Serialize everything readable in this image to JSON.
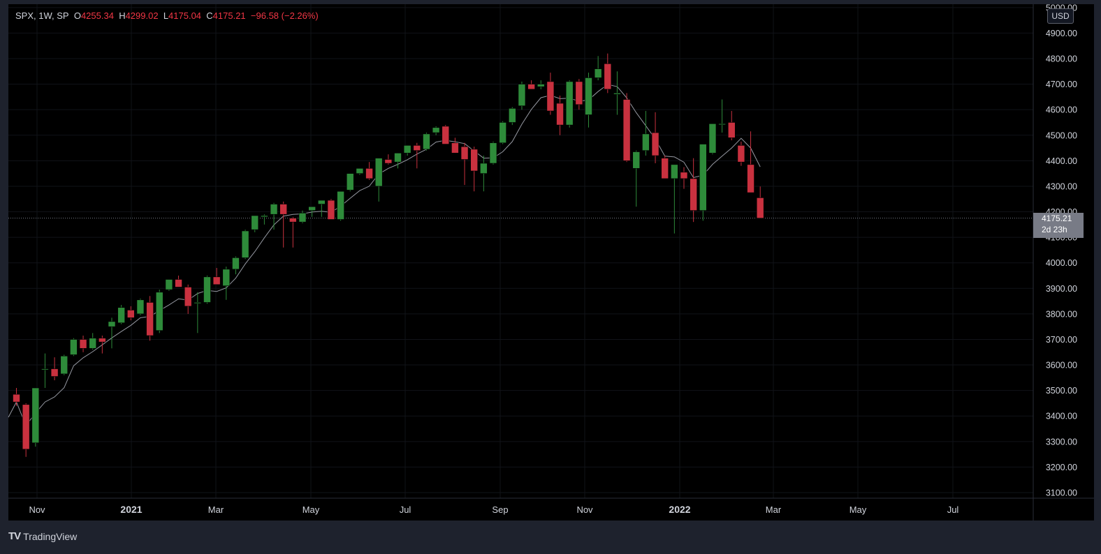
{
  "legend": {
    "symbol": "SPX, 1W, SP",
    "o_label": "O",
    "o": "4255.34",
    "h_label": "H",
    "h": "4299.02",
    "l_label": "L",
    "l": "4175.04",
    "c_label": "C",
    "c": "4175.21",
    "change": "−96.58 (−2.26%)"
  },
  "currency": "USD",
  "last_price": {
    "value": "4175.21",
    "countdown": "2d 23h"
  },
  "brand": "TradingView",
  "colors": {
    "up": "#2e8b3a",
    "down": "#c9313f",
    "bg": "#000000",
    "frame": "#1e222d",
    "ma": "#9598a1",
    "text": "#d1d4dc",
    "red_text": "#f23645"
  },
  "chart_data": {
    "type": "candlestick",
    "title": "SPX, 1W, SP",
    "ylim": [
      3070,
      5000
    ],
    "y_ticks": [
      "5000.00",
      "4900.00",
      "4800.00",
      "4700.00",
      "4600.00",
      "4500.00",
      "4400.00",
      "4300.00",
      "4200.00",
      "4100.00",
      "4000.00",
      "3900.00",
      "3800.00",
      "3700.00",
      "3600.00",
      "3500.00",
      "3400.00",
      "3300.00",
      "3200.00",
      "3100.00"
    ],
    "x_ticks": [
      "Nov",
      "2021",
      "Mar",
      "May",
      "Jul",
      "Sep",
      "Nov",
      "2022",
      "Mar",
      "May",
      "Jul"
    ],
    "x_ticks_bold": [
      "2021",
      "2022"
    ],
    "ma_series": {
      "name": "",
      "period": 5
    },
    "candles": [
      {
        "o": 3485,
        "h": 3510,
        "l": 3440,
        "c": 3455
      },
      {
        "o": 3445,
        "h": 3450,
        "l": 3240,
        "c": 3270
      },
      {
        "o": 3295,
        "h": 3510,
        "l": 3280,
        "c": 3510
      },
      {
        "o": 3585,
        "h": 3645,
        "l": 3510,
        "c": 3585
      },
      {
        "o": 3585,
        "h": 3630,
        "l": 3540,
        "c": 3555
      },
      {
        "o": 3565,
        "h": 3640,
        "l": 3560,
        "c": 3635
      },
      {
        "o": 3640,
        "h": 3705,
        "l": 3635,
        "c": 3700
      },
      {
        "o": 3700,
        "h": 3715,
        "l": 3650,
        "c": 3665
      },
      {
        "o": 3665,
        "h": 3725,
        "l": 3660,
        "c": 3705
      },
      {
        "o": 3705,
        "h": 3715,
        "l": 3645,
        "c": 3690
      },
      {
        "o": 3750,
        "h": 3785,
        "l": 3665,
        "c": 3770
      },
      {
        "o": 3765,
        "h": 3835,
        "l": 3760,
        "c": 3825
      },
      {
        "o": 3815,
        "h": 3830,
        "l": 3775,
        "c": 3785
      },
      {
        "o": 3800,
        "h": 3860,
        "l": 3795,
        "c": 3855
      },
      {
        "o": 3845,
        "h": 3870,
        "l": 3695,
        "c": 3715
      },
      {
        "o": 3735,
        "h": 3895,
        "l": 3725,
        "c": 3885
      },
      {
        "o": 3895,
        "h": 3935,
        "l": 3890,
        "c": 3935
      },
      {
        "o": 3935,
        "h": 3950,
        "l": 3905,
        "c": 3905
      },
      {
        "o": 3905,
        "h": 3915,
        "l": 3800,
        "c": 3830
      },
      {
        "o": 3845,
        "h": 3885,
        "l": 3725,
        "c": 3845
      },
      {
        "o": 3845,
        "h": 3950,
        "l": 3840,
        "c": 3945
      },
      {
        "o": 3945,
        "h": 3980,
        "l": 3920,
        "c": 3915
      },
      {
        "o": 3910,
        "h": 3985,
        "l": 3855,
        "c": 3975
      },
      {
        "o": 3975,
        "h": 4025,
        "l": 3955,
        "c": 4020
      },
      {
        "o": 4020,
        "h": 4130,
        "l": 4015,
        "c": 4125
      },
      {
        "o": 4130,
        "h": 4185,
        "l": 4120,
        "c": 4185
      },
      {
        "o": 4180,
        "h": 4190,
        "l": 4150,
        "c": 4185
      },
      {
        "o": 4190,
        "h": 4235,
        "l": 4130,
        "c": 4230
      },
      {
        "o": 4230,
        "h": 4240,
        "l": 4060,
        "c": 4190
      },
      {
        "o": 4175,
        "h": 4180,
        "l": 4060,
        "c": 4160
      },
      {
        "o": 4160,
        "h": 4205,
        "l": 4155,
        "c": 4195
      },
      {
        "o": 4205,
        "h": 4215,
        "l": 4180,
        "c": 4220
      },
      {
        "o": 4230,
        "h": 4235,
        "l": 4180,
        "c": 4245
      },
      {
        "o": 4245,
        "h": 4250,
        "l": 4170,
        "c": 4170
      },
      {
        "o": 4170,
        "h": 4280,
        "l": 4165,
        "c": 4280
      },
      {
        "o": 4285,
        "h": 4350,
        "l": 4280,
        "c": 4350
      },
      {
        "o": 4350,
        "h": 4370,
        "l": 4345,
        "c": 4370
      },
      {
        "o": 4370,
        "h": 4395,
        "l": 4325,
        "c": 4330
      },
      {
        "o": 4300,
        "h": 4410,
        "l": 4240,
        "c": 4410
      },
      {
        "o": 4405,
        "h": 4425,
        "l": 4385,
        "c": 4390
      },
      {
        "o": 4395,
        "h": 4430,
        "l": 4370,
        "c": 4430
      },
      {
        "o": 4430,
        "h": 4460,
        "l": 4420,
        "c": 4460
      },
      {
        "o": 4460,
        "h": 4470,
        "l": 4370,
        "c": 4440
      },
      {
        "o": 4445,
        "h": 4510,
        "l": 4440,
        "c": 4505
      },
      {
        "o": 4510,
        "h": 4535,
        "l": 4500,
        "c": 4530
      },
      {
        "o": 4535,
        "h": 4540,
        "l": 4470,
        "c": 4465
      },
      {
        "o": 4470,
        "h": 4490,
        "l": 4430,
        "c": 4430
      },
      {
        "o": 4455,
        "h": 4470,
        "l": 4305,
        "c": 4405
      },
      {
        "o": 4445,
        "h": 4455,
        "l": 4280,
        "c": 4360
      },
      {
        "o": 4350,
        "h": 4420,
        "l": 4280,
        "c": 4390
      },
      {
        "o": 4390,
        "h": 4475,
        "l": 4385,
        "c": 4470
      },
      {
        "o": 4470,
        "h": 4555,
        "l": 4465,
        "c": 4550
      },
      {
        "o": 4550,
        "h": 4610,
        "l": 4540,
        "c": 4605
      },
      {
        "o": 4615,
        "h": 4710,
        "l": 4600,
        "c": 4700
      },
      {
        "o": 4700,
        "h": 4715,
        "l": 4680,
        "c": 4680
      },
      {
        "o": 4690,
        "h": 4715,
        "l": 4680,
        "c": 4700
      },
      {
        "o": 4710,
        "h": 4745,
        "l": 4580,
        "c": 4595
      },
      {
        "o": 4625,
        "h": 4655,
        "l": 4500,
        "c": 4540
      },
      {
        "o": 4540,
        "h": 4715,
        "l": 4530,
        "c": 4710
      },
      {
        "o": 4710,
        "h": 4720,
        "l": 4600,
        "c": 4620
      },
      {
        "o": 4580,
        "h": 4745,
        "l": 4530,
        "c": 4725
      },
      {
        "o": 4725,
        "h": 4810,
        "l": 4715,
        "c": 4760
      },
      {
        "o": 4780,
        "h": 4820,
        "l": 4665,
        "c": 4680
      },
      {
        "o": 4660,
        "h": 4750,
        "l": 4580,
        "c": 4665
      },
      {
        "o": 4640,
        "h": 4665,
        "l": 4395,
        "c": 4400
      },
      {
        "o": 4370,
        "h": 4440,
        "l": 4220,
        "c": 4435
      },
      {
        "o": 4440,
        "h": 4595,
        "l": 4420,
        "c": 4505
      },
      {
        "o": 4510,
        "h": 4590,
        "l": 4390,
        "c": 4420
      },
      {
        "o": 4410,
        "h": 4420,
        "l": 4330,
        "c": 4330
      },
      {
        "o": 4330,
        "h": 4385,
        "l": 4115,
        "c": 4385
      },
      {
        "o": 4355,
        "h": 4375,
        "l": 4290,
        "c": 4330
      },
      {
        "o": 4330,
        "h": 4410,
        "l": 4160,
        "c": 4205
      },
      {
        "o": 4205,
        "h": 4465,
        "l": 4165,
        "c": 4465
      },
      {
        "o": 4430,
        "h": 4545,
        "l": 4425,
        "c": 4545
      },
      {
        "o": 4545,
        "h": 4640,
        "l": 4510,
        "c": 4545
      },
      {
        "o": 4550,
        "h": 4595,
        "l": 4480,
        "c": 4490
      },
      {
        "o": 4460,
        "h": 4475,
        "l": 4380,
        "c": 4395
      },
      {
        "o": 4385,
        "h": 4515,
        "l": 4275,
        "c": 4275
      },
      {
        "o": 4255,
        "h": 4299,
        "l": 4175,
        "c": 4175
      }
    ]
  }
}
